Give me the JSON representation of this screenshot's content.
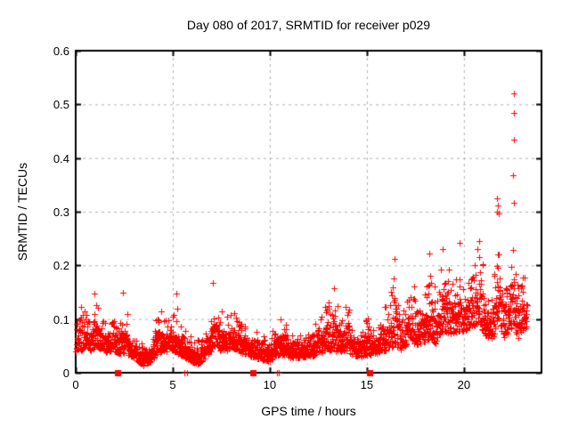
{
  "figure": {
    "title": "Day 080 of 2017, SRMTID for receiver p029",
    "xlabel": "GPS time / hours",
    "ylabel": "SRMTID / TECUs"
  },
  "chart_data": {
    "type": "scatter",
    "title": "Day 080 of 2017, SRMTID for receiver p029",
    "xlabel": "GPS time / hours",
    "ylabel": "SRMTID / TECUs",
    "xlim": [
      0,
      24
    ],
    "ylim": [
      0,
      0.6
    ],
    "xticks": [
      0,
      5,
      10,
      15,
      20
    ],
    "xtick_labels": [
      "0",
      "5",
      "10",
      "15",
      "20"
    ],
    "yticks": [
      0,
      0.1,
      0.2,
      0.3,
      0.4,
      0.5,
      0.6
    ],
    "ytick_labels": [
      "0",
      "0.1",
      "0.2",
      "0.3",
      "0.4",
      "0.5",
      "0.6"
    ],
    "grid": true,
    "legend": "none",
    "marker": "plus",
    "marker_color": "#ff0000",
    "grid_color": "#b0b0b0",
    "border_color": "#000000",
    "points_per_hour": 110,
    "t_start": 0.02,
    "t_end": 23.25,
    "band_envelope": [
      [
        0.0,
        0.035,
        0.14
      ],
      [
        0.4,
        0.04,
        0.12
      ],
      [
        0.8,
        0.04,
        0.11
      ],
      [
        1.1,
        0.045,
        0.14
      ],
      [
        1.5,
        0.035,
        0.095
      ],
      [
        1.95,
        0.04,
        0.125
      ],
      [
        2.2,
        0.035,
        0.09
      ],
      [
        2.45,
        0.035,
        0.15
      ],
      [
        2.8,
        0.03,
        0.08
      ],
      [
        3.2,
        0.02,
        0.065
      ],
      [
        3.5,
        0.012,
        0.05
      ],
      [
        3.9,
        0.022,
        0.065
      ],
      [
        4.25,
        0.035,
        0.135
      ],
      [
        4.6,
        0.038,
        0.095
      ],
      [
        5.0,
        0.038,
        0.115
      ],
      [
        5.35,
        0.032,
        0.09
      ],
      [
        5.8,
        0.022,
        0.075
      ],
      [
        6.2,
        0.015,
        0.06
      ],
      [
        6.5,
        0.018,
        0.065
      ],
      [
        6.9,
        0.035,
        0.1
      ],
      [
        7.15,
        0.045,
        0.165
      ],
      [
        7.4,
        0.04,
        0.12
      ],
      [
        7.8,
        0.04,
        0.105
      ],
      [
        8.2,
        0.042,
        0.13
      ],
      [
        8.6,
        0.035,
        0.09
      ],
      [
        9.1,
        0.028,
        0.08
      ],
      [
        9.6,
        0.022,
        0.07
      ],
      [
        10.0,
        0.02,
        0.07
      ],
      [
        10.3,
        0.028,
        0.09
      ],
      [
        10.6,
        0.032,
        0.12
      ],
      [
        11.0,
        0.028,
        0.08
      ],
      [
        11.4,
        0.025,
        0.07
      ],
      [
        11.8,
        0.028,
        0.075
      ],
      [
        12.2,
        0.03,
        0.085
      ],
      [
        12.6,
        0.035,
        0.105
      ],
      [
        13.0,
        0.038,
        0.15
      ],
      [
        13.35,
        0.038,
        0.155
      ],
      [
        13.65,
        0.035,
        0.1
      ],
      [
        13.95,
        0.038,
        0.14
      ],
      [
        14.3,
        0.032,
        0.09
      ],
      [
        14.7,
        0.028,
        0.08
      ],
      [
        15.05,
        0.03,
        0.145
      ],
      [
        15.35,
        0.032,
        0.09
      ],
      [
        15.75,
        0.038,
        0.115
      ],
      [
        16.1,
        0.04,
        0.13
      ],
      [
        16.45,
        0.048,
        0.21
      ],
      [
        16.75,
        0.04,
        0.12
      ],
      [
        17.05,
        0.05,
        0.15
      ],
      [
        17.35,
        0.055,
        0.185
      ],
      [
        17.65,
        0.048,
        0.13
      ],
      [
        18.0,
        0.055,
        0.16
      ],
      [
        18.25,
        0.058,
        0.22
      ],
      [
        18.55,
        0.052,
        0.15
      ],
      [
        18.95,
        0.075,
        0.23
      ],
      [
        19.25,
        0.068,
        0.205
      ],
      [
        19.55,
        0.065,
        0.17
      ],
      [
        19.85,
        0.075,
        0.195
      ],
      [
        20.15,
        0.078,
        0.17
      ],
      [
        20.45,
        0.085,
        0.21
      ],
      [
        20.8,
        0.085,
        0.245
      ],
      [
        21.15,
        0.065,
        0.17
      ],
      [
        21.45,
        0.06,
        0.17
      ],
      [
        21.75,
        0.07,
        0.3
      ],
      [
        22.05,
        0.062,
        0.17
      ],
      [
        22.3,
        0.07,
        0.19
      ],
      [
        22.55,
        0.085,
        0.29
      ],
      [
        22.8,
        0.055,
        0.185
      ],
      [
        23.0,
        0.075,
        0.225
      ],
      [
        23.2,
        0.08,
        0.16
      ]
    ],
    "outlier_points": [
      [
        22.56,
        0.52
      ],
      [
        22.56,
        0.484
      ],
      [
        22.58,
        0.435
      ],
      [
        22.55,
        0.368
      ],
      [
        22.6,
        0.317
      ],
      [
        21.7,
        0.325
      ],
      [
        21.76,
        0.312
      ],
      [
        21.72,
        0.3
      ],
      [
        21.82,
        0.296
      ],
      [
        19.78,
        0.242
      ],
      [
        20.8,
        0.246
      ],
      [
        18.92,
        0.23
      ],
      [
        18.24,
        0.222
      ],
      [
        16.42,
        0.212
      ],
      [
        5.2,
        0.148
      ],
      [
        5.22,
        0.12
      ],
      [
        7.08,
        0.168
      ],
      [
        0.95,
        0.148
      ],
      [
        2.42,
        0.15
      ],
      [
        13.32,
        0.157
      ]
    ],
    "zero_line_points": [
      5.6,
      5.73,
      10.35,
      10.48
    ],
    "baseline_event_squares": [
      2.15,
      9.15,
      15.15
    ]
  }
}
